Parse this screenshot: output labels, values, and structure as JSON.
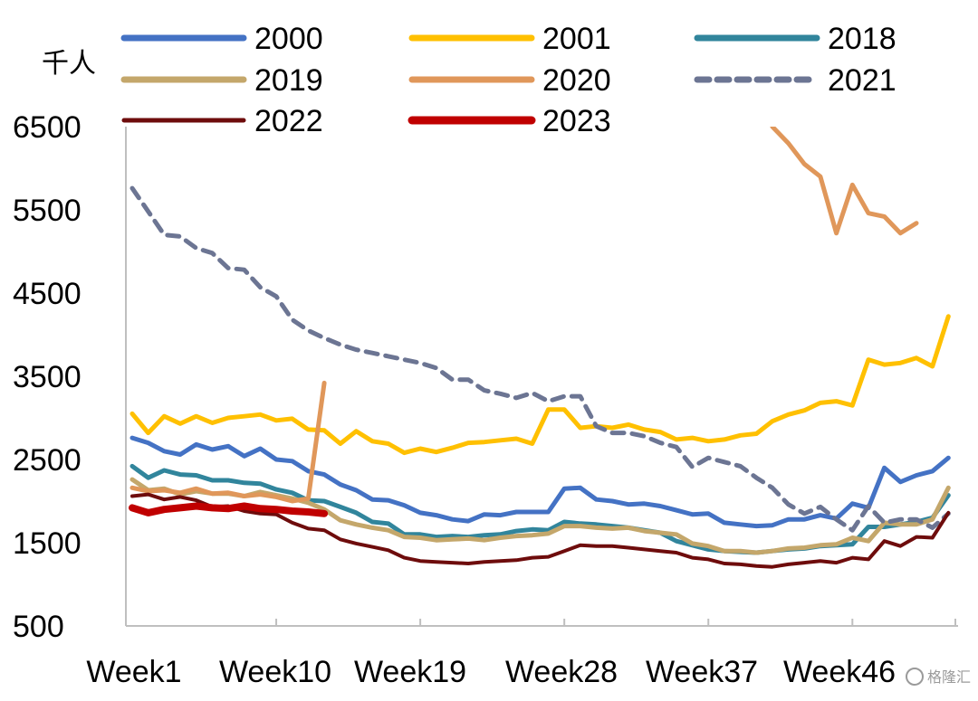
{
  "chart_data": {
    "type": "line",
    "title": "",
    "ylabel": "千人",
    "xlabel": "",
    "ylim": [
      500,
      6500
    ],
    "yticks": [
      500,
      1500,
      2500,
      3500,
      4500,
      5500,
      6500
    ],
    "ytick_labels": [
      "500",
      "1500",
      "2500",
      "3500",
      "4500",
      "5500",
      "6500"
    ],
    "xlim": [
      1,
      53
    ],
    "xticks": [
      1,
      10,
      19,
      28,
      37,
      46
    ],
    "xtick_labels": [
      "Week1",
      "Week10",
      "Week19",
      "Week28",
      "Week37",
      "Week46"
    ],
    "grid": false,
    "legend_position": "top",
    "series": [
      {
        "name": "2000",
        "color": "#4472c4",
        "dash": "solid",
        "x": [
          1,
          2,
          3,
          4,
          5,
          6,
          7,
          8,
          9,
          10,
          11,
          12,
          13,
          14,
          15,
          16,
          17,
          18,
          19,
          20,
          21,
          22,
          23,
          24,
          25,
          26,
          27,
          28,
          29,
          30,
          31,
          32,
          33,
          34,
          35,
          36,
          37,
          38,
          39,
          40,
          41,
          42,
          43,
          44,
          45,
          46,
          47,
          48,
          49,
          50,
          51,
          52
        ],
        "values": [
          2760,
          2700,
          2600,
          2560,
          2680,
          2620,
          2660,
          2540,
          2630,
          2500,
          2480,
          2360,
          2320,
          2200,
          2130,
          2020,
          2010,
          1950,
          1860,
          1830,
          1780,
          1760,
          1840,
          1830,
          1870,
          1870,
          1870,
          2150,
          2160,
          2020,
          2000,
          1960,
          1970,
          1940,
          1890,
          1840,
          1850,
          1740,
          1720,
          1700,
          1710,
          1780,
          1780,
          1830,
          1790,
          1970,
          1920,
          2400,
          2230,
          2310,
          2360,
          2520
        ]
      },
      {
        "name": "2001",
        "color": "#ffc000",
        "dash": "solid",
        "x": [
          1,
          2,
          3,
          4,
          5,
          6,
          7,
          8,
          9,
          10,
          11,
          12,
          13,
          14,
          15,
          16,
          17,
          18,
          19,
          20,
          21,
          22,
          23,
          24,
          25,
          26,
          27,
          28,
          29,
          30,
          31,
          32,
          33,
          34,
          35,
          36,
          37,
          38,
          39,
          40,
          41,
          42,
          43,
          44,
          45,
          46,
          47,
          48,
          49,
          50,
          51,
          52
        ],
        "values": [
          3050,
          2820,
          3020,
          2930,
          3020,
          2940,
          3000,
          3020,
          3040,
          2970,
          2990,
          2860,
          2850,
          2690,
          2840,
          2720,
          2690,
          2580,
          2630,
          2590,
          2640,
          2700,
          2710,
          2730,
          2750,
          2690,
          3100,
          3100,
          2880,
          2900,
          2880,
          2920,
          2860,
          2830,
          2740,
          2760,
          2720,
          2740,
          2790,
          2810,
          2960,
          3040,
          3090,
          3180,
          3200,
          3150,
          3700,
          3640,
          3660,
          3720,
          3620,
          4220
        ]
      },
      {
        "name": "2018",
        "color": "#31859c",
        "dash": "solid",
        "x": [
          1,
          2,
          3,
          4,
          5,
          6,
          7,
          8,
          9,
          10,
          11,
          12,
          13,
          14,
          15,
          16,
          17,
          18,
          19,
          20,
          21,
          22,
          23,
          24,
          25,
          26,
          27,
          28,
          29,
          30,
          31,
          32,
          33,
          34,
          35,
          36,
          37,
          38,
          39,
          40,
          41,
          42,
          43,
          44,
          45,
          46,
          47,
          48,
          49,
          50,
          51,
          52
        ],
        "values": [
          2420,
          2280,
          2370,
          2320,
          2310,
          2250,
          2250,
          2220,
          2210,
          2140,
          2100,
          2010,
          2000,
          1930,
          1860,
          1750,
          1730,
          1600,
          1600,
          1570,
          1580,
          1570,
          1590,
          1600,
          1640,
          1660,
          1650,
          1750,
          1730,
          1720,
          1700,
          1680,
          1650,
          1620,
          1520,
          1470,
          1420,
          1400,
          1390,
          1380,
          1400,
          1420,
          1430,
          1460,
          1470,
          1480,
          1690,
          1690,
          1720,
          1750,
          1800,
          2070
        ]
      },
      {
        "name": "2019",
        "color": "#c4a76b",
        "dash": "solid",
        "x": [
          1,
          2,
          3,
          4,
          5,
          6,
          7,
          8,
          9,
          10,
          11,
          12,
          13,
          14,
          15,
          16,
          17,
          18,
          19,
          20,
          21,
          22,
          23,
          24,
          25,
          26,
          27,
          28,
          29,
          30,
          31,
          32,
          33,
          34,
          35,
          36,
          37,
          38,
          39,
          40,
          41,
          42,
          43,
          44,
          45,
          46,
          47,
          48,
          49,
          50,
          51,
          52
        ],
        "values": [
          2260,
          2130,
          2150,
          2080,
          2120,
          2090,
          2090,
          2060,
          2110,
          2070,
          2030,
          1980,
          1900,
          1770,
          1720,
          1680,
          1650,
          1570,
          1560,
          1530,
          1540,
          1550,
          1530,
          1560,
          1580,
          1590,
          1610,
          1700,
          1700,
          1680,
          1670,
          1680,
          1640,
          1620,
          1600,
          1490,
          1460,
          1400,
          1400,
          1380,
          1400,
          1430,
          1440,
          1470,
          1480,
          1560,
          1520,
          1740,
          1720,
          1720,
          1780,
          2160
        ]
      },
      {
        "name": "2020",
        "color": "#e0975a",
        "dash": "solid",
        "x": [
          1,
          2,
          3,
          4,
          5,
          6,
          7,
          8,
          9,
          10,
          11,
          12,
          13,
          null,
          41,
          42,
          43,
          44,
          45,
          46,
          47,
          48,
          49,
          50,
          51,
          52,
          53
        ],
        "values": [
          2160,
          2120,
          2130,
          2100,
          2150,
          2090,
          2100,
          2060,
          2080,
          2050,
          2000,
          2030,
          3420,
          null,
          6500,
          6300,
          6050,
          5900,
          5220,
          5800,
          5460,
          5420,
          5220,
          5340,
          null,
          null,
          null
        ]
      },
      {
        "name": "2021",
        "color": "#6c7593",
        "dash": "dashed",
        "x": [
          1,
          2,
          3,
          4,
          5,
          6,
          7,
          8,
          9,
          10,
          11,
          12,
          13,
          14,
          15,
          16,
          17,
          18,
          19,
          20,
          21,
          22,
          23,
          24,
          25,
          26,
          27,
          28,
          29,
          30,
          31,
          32,
          33,
          34,
          35,
          36,
          37,
          38,
          39,
          40,
          41,
          42,
          43,
          44,
          45,
          46,
          47,
          48,
          49,
          50,
          51,
          52
        ],
        "values": [
          5760,
          5480,
          5200,
          5180,
          5040,
          4980,
          4800,
          4780,
          4570,
          4460,
          4180,
          4050,
          3960,
          3880,
          3820,
          3780,
          3740,
          3700,
          3660,
          3600,
          3460,
          3460,
          3330,
          3290,
          3240,
          3300,
          3200,
          3260,
          3260,
          2900,
          2820,
          2820,
          2780,
          2700,
          2650,
          2410,
          2520,
          2470,
          2420,
          2280,
          2160,
          1960,
          1850,
          1930,
          1780,
          1650,
          1940,
          1740,
          1780,
          1780,
          1680,
          1850
        ]
      },
      {
        "name": "2022",
        "color": "#6e0c0c",
        "dash": "solid",
        "x": [
          1,
          2,
          3,
          4,
          5,
          6,
          7,
          8,
          9,
          10,
          11,
          12,
          13,
          14,
          15,
          16,
          17,
          18,
          19,
          20,
          21,
          22,
          23,
          24,
          25,
          26,
          27,
          28,
          29,
          30,
          31,
          32,
          33,
          34,
          35,
          36,
          37,
          38,
          39,
          40,
          41,
          42,
          43,
          44,
          45,
          46,
          47,
          48,
          49,
          50,
          51,
          52
        ],
        "values": [
          2060,
          2080,
          2020,
          2050,
          2010,
          1930,
          1940,
          1880,
          1850,
          1840,
          1740,
          1670,
          1650,
          1540,
          1490,
          1450,
          1410,
          1320,
          1280,
          1270,
          1260,
          1250,
          1270,
          1280,
          1290,
          1320,
          1330,
          1400,
          1470,
          1460,
          1460,
          1440,
          1420,
          1400,
          1380,
          1320,
          1300,
          1250,
          1240,
          1220,
          1210,
          1240,
          1260,
          1280,
          1260,
          1320,
          1300,
          1520,
          1460,
          1570,
          1560,
          1860
        ]
      },
      {
        "name": "2023",
        "color": "#c00000",
        "dash": "solid",
        "x": [
          1,
          2,
          3,
          4,
          5,
          6,
          7,
          8,
          9,
          10,
          11,
          12,
          13
        ],
        "values": [
          1920,
          1860,
          1900,
          1920,
          1940,
          1920,
          1910,
          1940,
          1910,
          1900,
          1880,
          1870,
          1850
        ]
      }
    ]
  },
  "watermark": {
    "text": "格隆汇"
  }
}
